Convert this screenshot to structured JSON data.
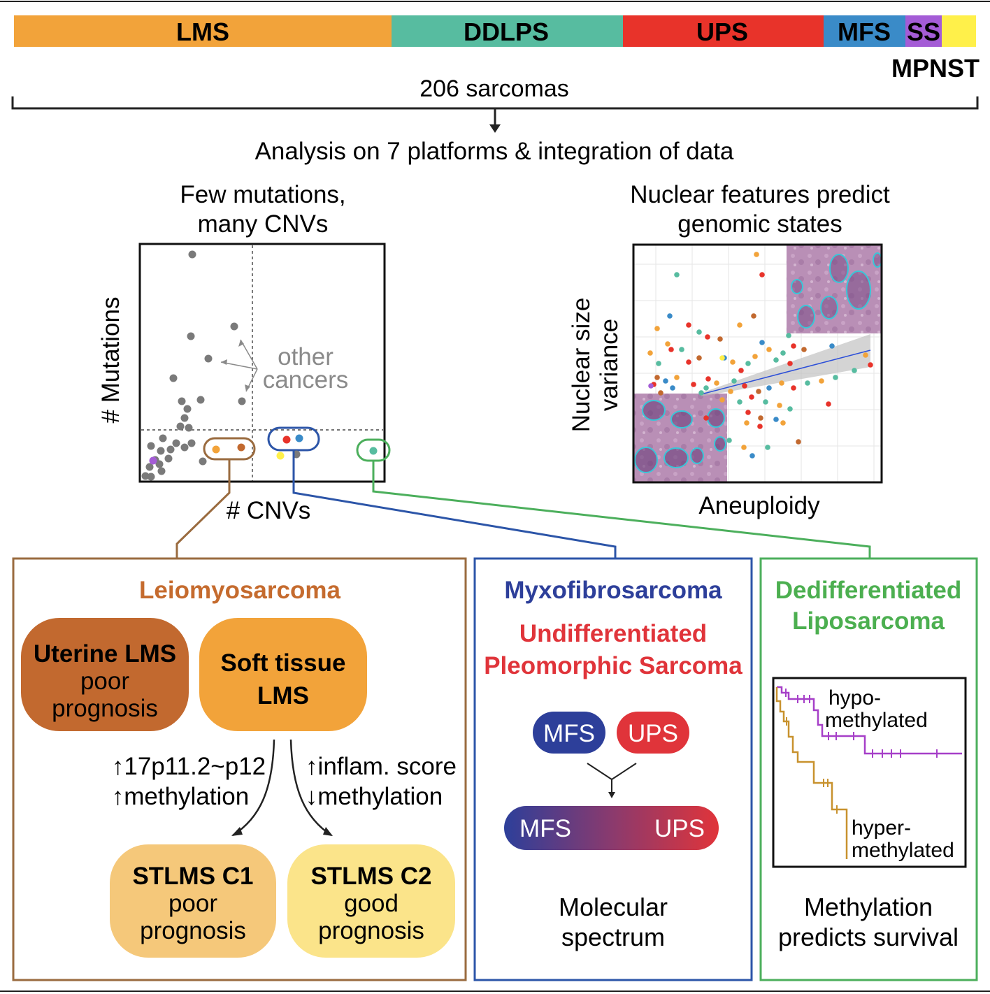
{
  "colors": {
    "lms": "#F2A33A",
    "ddlps": "#57BCA0",
    "ups": "#E8332A",
    "mfs": "#3A8BC8",
    "ss": "#A45CD6",
    "mpnst": "#FFF04A",
    "uterine_lms": "#C2692F",
    "soft_tissue_lms": "#F2A33A",
    "stlms_c1": "#F5C87A",
    "stlms_c2": "#FBE48A",
    "lms_panel": "#9A6B3F",
    "mfs_panel": "#2C55A8",
    "ddlps_panel": "#4CAF5C",
    "mfs_label": "#2D3F9A",
    "ups_label": "#E0343A",
    "dedifferentiated_label": "#4CAF50",
    "leiomyosarcoma_label": "#C56B2E",
    "hypo_curve": "#A63FC8",
    "hyper_curve": "#C8922E",
    "other_cancers_label": "#8A8A8A",
    "grey_points": "#7A7A7A"
  },
  "top_bar": {
    "segments": [
      {
        "label": "LMS",
        "color_key": "lms"
      },
      {
        "label": "DDLPS",
        "color_key": "ddlps"
      },
      {
        "label": "UPS",
        "color_key": "ups"
      },
      {
        "label": "MFS",
        "color_key": "mfs"
      },
      {
        "label": "SS",
        "color_key": "ss"
      },
      {
        "label": "",
        "color_key": "mpnst"
      }
    ],
    "mpnst_label": "MPNST",
    "total_label": "206 sarcomas",
    "analysis_label": "Analysis on 7 platforms & integration of data"
  },
  "left_plot": {
    "title_line1": "Few mutations,",
    "title_line2": "many CNVs",
    "ylabel": "# Mutations",
    "xlabel": "# CNVs",
    "annotation_line1": "other",
    "annotation_line2": "cancers"
  },
  "right_plot": {
    "title_line1": "Nuclear features predict",
    "title_line2": "genomic states",
    "ylabel_line1": "Nuclear size",
    "ylabel_line2": "variance",
    "xlabel": "Aneuploidy"
  },
  "lms_panel": {
    "title": "Leiomyosarcoma",
    "uterine_line1": "Uterine LMS",
    "uterine_line2": "poor",
    "uterine_line3": "prognosis",
    "soft_line1": "Soft tissue",
    "soft_line2": "LMS",
    "left_arrow_line1": "↑17p11.2~p12",
    "left_arrow_line2": "↑methylation",
    "right_arrow_line1": "↑inflam. score",
    "right_arrow_line2": "↓methylation",
    "c1_line1": "STLMS C1",
    "c1_line2": "poor",
    "c1_line3": "prognosis",
    "c2_line1": "STLMS C2",
    "c2_line2": "good",
    "c2_line3": "prognosis"
  },
  "mfs_panel": {
    "title1": "Myxofibrosarcoma",
    "title2_line1": "Undifferentiated",
    "title2_line2": "Pleomorphic Sarcoma",
    "pill_mfs": "MFS",
    "pill_ups": "UPS",
    "gradient_left": "MFS",
    "gradient_right": "UPS",
    "caption_line1": "Molecular",
    "caption_line2": "spectrum"
  },
  "ddlps_panel": {
    "title_line1": "Dedifferentiated",
    "title_line2": "Liposarcoma",
    "hypo_line1": "hypo-",
    "hypo_line2": "methylated",
    "hyper_line1": "hyper-",
    "hyper_line2": "methylated",
    "caption_line1": "Methylation",
    "caption_line2": "predicts survival"
  }
}
